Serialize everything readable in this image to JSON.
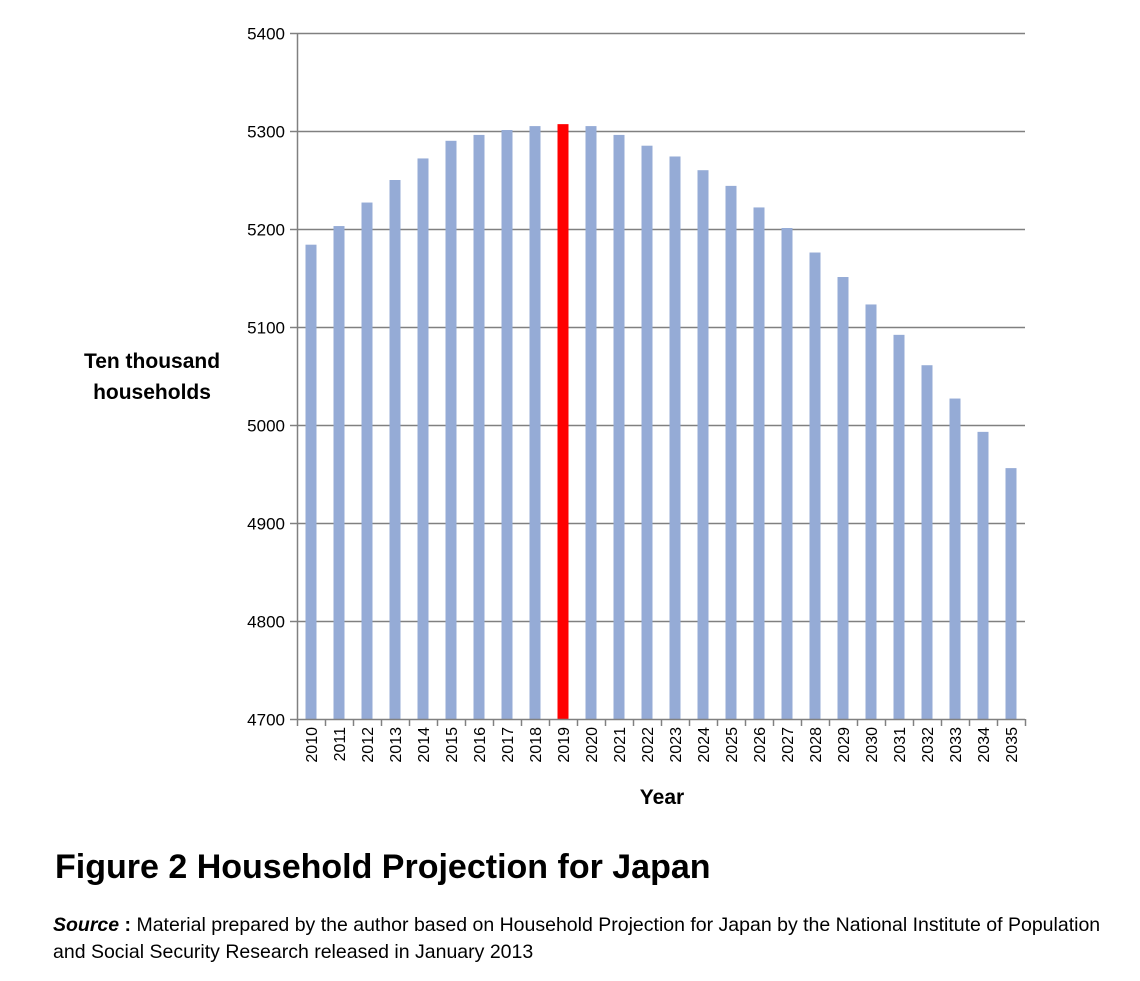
{
  "chart_data": {
    "type": "bar",
    "categories": [
      "2010",
      "2011",
      "2012",
      "2013",
      "2014",
      "2015",
      "2016",
      "2017",
      "2018",
      "2019",
      "2020",
      "2021",
      "2022",
      "2023",
      "2024",
      "2025",
      "2026",
      "2027",
      "2028",
      "2029",
      "2030",
      "2031",
      "2032",
      "2033",
      "2034",
      "2035"
    ],
    "values": [
      5184,
      5203,
      5227,
      5250,
      5272,
      5290,
      5296,
      5301,
      5305,
      5307,
      5305,
      5296,
      5285,
      5274,
      5260,
      5244,
      5222,
      5201,
      5176,
      5151,
      5123,
      5092,
      5061,
      5027,
      4993,
      4956
    ],
    "highlight_category": "2019",
    "ylim": [
      4700,
      5400
    ],
    "yticks": [
      4700,
      4800,
      4900,
      5000,
      5100,
      5200,
      5300,
      5400
    ],
    "xlabel": "Year",
    "ylabel_lines": [
      "Ten thousand",
      "households"
    ],
    "grid": true,
    "colors": {
      "bar": "#95abd6",
      "highlight": "#ff0000",
      "grid": "#808080",
      "axis": "#808080"
    }
  },
  "figure": {
    "title": "Figure 2 Household Projection for Japan",
    "source_label": "Source",
    "source_colon": " :",
    "source_text": " Material prepared by the author based on Household Projection for Japan by the National Institute of Population and Social Security Research released in January 2013"
  }
}
